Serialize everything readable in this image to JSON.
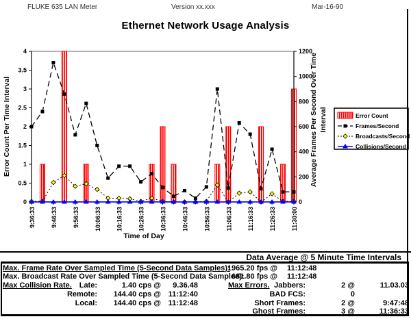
{
  "header": {
    "device": "FLUKE 635 LAN Meter",
    "version": "Version xx.xxx",
    "date": "Mar-16-90"
  },
  "title": "Ethernet Network Usage Analysis",
  "chart_data": {
    "type": "bar+line combo",
    "title": "Ethernet Network Usage Analysis",
    "xlabel": "Time of Day",
    "ylabel_left": "Error Count Per Time Interval",
    "ylabel_right_lines": [
      "Average Frames Per Second Over Time",
      "Interval"
    ],
    "ylim_left": [
      0,
      4
    ],
    "ylim_right": [
      0,
      1200
    ],
    "yticks_left": [
      0,
      0.5,
      1,
      1.5,
      2,
      2.5,
      3,
      3.5,
      4
    ],
    "yticks_right": [
      0,
      200,
      400,
      600,
      800,
      1000,
      1200
    ],
    "x_tick_labels": [
      "9:36:33",
      "9:46:33",
      "9:56:33",
      "10:06:33",
      "10:16:33",
      "10:26:33",
      "10:36:33",
      "10:46:33",
      "10:56:33",
      "11:06:33",
      "11:16:33",
      "11:26:33",
      "11:30:00"
    ],
    "legend_position": "right",
    "grid": "top line only",
    "series": [
      {
        "name": "Error Count",
        "type": "bar",
        "axis": "left",
        "color": "#ff0000",
        "values": [
          0,
          1,
          0,
          4,
          0,
          1,
          0,
          0,
          0,
          0,
          0,
          1,
          2,
          1,
          0,
          0,
          0,
          1,
          2,
          0,
          0,
          2,
          0,
          1,
          3
        ]
      },
      {
        "name": "Frames/Second",
        "type": "line",
        "axis": "right",
        "color": "#000000",
        "marker": "square",
        "values": [
          600,
          720,
          1110,
          860,
          535,
          785,
          450,
          190,
          285,
          285,
          160,
          225,
          115,
          45,
          90,
          30,
          120,
          900,
          110,
          630,
          540,
          105,
          420,
          80,
          80
        ]
      },
      {
        "name": "Broadcasts/Second",
        "type": "line",
        "axis": "right",
        "color": "#ffff00",
        "marker": "diamond",
        "values": [
          5,
          5,
          155,
          210,
          125,
          145,
          100,
          30,
          30,
          25,
          5,
          30,
          5,
          0,
          0,
          0,
          5,
          135,
          0,
          70,
          80,
          0,
          65,
          5,
          5
        ]
      },
      {
        "name": "Collisions/Second",
        "type": "line",
        "axis": "right",
        "color": "#0000ff",
        "marker": "triangle",
        "values": [
          0,
          0,
          0,
          0,
          0,
          0,
          0,
          0,
          0,
          0,
          0,
          0,
          0,
          0,
          0,
          0,
          0,
          0,
          0,
          0,
          0,
          0,
          0,
          0,
          0
        ]
      }
    ]
  },
  "summary": {
    "data_average": "Data Average @ 5 Minute Time Intervals"
  },
  "stats": {
    "frame_rate": {
      "label": "Max. Frame Rate Over Sampled Time (5-Second Data Samples):",
      "value": "1965.20 fps @",
      "time": "11:12:48"
    },
    "broadcast_rate": {
      "label": "Max. Broadcast Rate Over Sampled Time (5-Second Data Samples):",
      "value": "681.80 fps @",
      "time": "11:12:48"
    },
    "collision": {
      "title": "Max Collision Rate.",
      "rows": [
        {
          "label": "Late:",
          "value": "1.40 cps @",
          "time": "9.36.48"
        },
        {
          "label": "Remote:",
          "value": "144.40 cps @",
          "time": "11:12:40"
        },
        {
          "label": "Local:",
          "value": "144.40 cps @",
          "time": "11:12:48"
        }
      ]
    },
    "errors": {
      "title": "Max Errors.",
      "rows": [
        {
          "label": "Jabbers:",
          "value": "2 @",
          "time": "11.03.03"
        },
        {
          "label": "BAD FCS:",
          "value": "0",
          "time": ""
        },
        {
          "label": "Short Frames:",
          "value": "2 @",
          "time": "9:47:48"
        },
        {
          "label": "Ghost Frames:",
          "value": "3 @",
          "time": "11:36:33"
        }
      ]
    }
  }
}
